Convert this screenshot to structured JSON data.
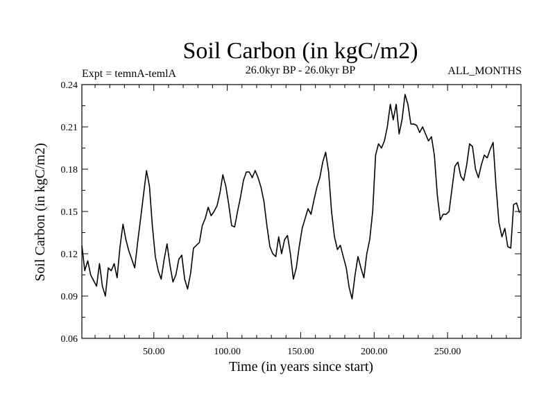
{
  "chart_data": {
    "type": "line",
    "title": "Soil Carbon (in kgC/m2)",
    "subtitle_left": "Expt = temnA-temlA",
    "subtitle_center": "26.0kyr BP - 26.0kyr BP",
    "subtitle_right": "ALL_MONTHS",
    "xlabel": "Time (in years since start)",
    "ylabel": "Soil Carbon (in kgC/m2)",
    "xlim": [
      1,
      300
    ],
    "ylim": [
      0.06,
      0.24
    ],
    "x_ticks": [
      50,
      100,
      150,
      200,
      250
    ],
    "x_tick_labels": [
      "50.00",
      "100.00",
      "150.00",
      "200.00",
      "250.00"
    ],
    "y_ticks": [
      0.06,
      0.09,
      0.12,
      0.15,
      0.18,
      0.21,
      0.24
    ],
    "y_tick_labels": [
      "0.06",
      "0.09",
      "0.12",
      "0.15",
      "0.18",
      "0.21",
      "0.24"
    ],
    "grid": false,
    "series": [
      {
        "name": "Soil Carbon",
        "color": "#000000",
        "x": [
          1,
          3,
          5,
          7,
          9,
          11,
          13,
          15,
          17,
          19,
          21,
          23,
          25,
          27,
          29,
          31,
          33,
          35,
          37,
          39,
          41,
          43,
          45,
          47,
          49,
          51,
          53,
          55,
          57,
          59,
          61,
          63,
          65,
          67,
          69,
          71,
          73,
          75,
          77,
          79,
          81,
          83,
          85,
          87,
          89,
          91,
          93,
          95,
          97,
          99,
          101,
          103,
          105,
          107,
          109,
          111,
          113,
          115,
          117,
          119,
          121,
          123,
          125,
          127,
          129,
          131,
          133,
          135,
          137,
          139,
          141,
          143,
          145,
          147,
          149,
          151,
          153,
          155,
          157,
          159,
          161,
          163,
          165,
          167,
          169,
          171,
          173,
          175,
          177,
          179,
          181,
          183,
          185,
          187,
          189,
          191,
          193,
          195,
          197,
          199,
          201,
          203,
          205,
          207,
          209,
          211,
          213,
          215,
          217,
          219,
          221,
          223,
          225,
          227,
          229,
          231,
          233,
          235,
          237,
          239,
          241,
          243,
          245,
          247,
          249,
          251,
          253,
          255,
          257,
          259,
          261,
          263,
          265,
          267,
          269,
          271,
          273,
          275,
          277,
          279,
          281,
          283,
          285,
          287,
          289,
          291,
          293,
          295,
          297,
          299
        ],
        "values": [
          0.126,
          0.108,
          0.115,
          0.105,
          0.101,
          0.097,
          0.113,
          0.097,
          0.09,
          0.11,
          0.108,
          0.113,
          0.103,
          0.125,
          0.141,
          0.13,
          0.122,
          0.116,
          0.11,
          0.128,
          0.145,
          0.162,
          0.179,
          0.168,
          0.14,
          0.118,
          0.108,
          0.102,
          0.116,
          0.127,
          0.112,
          0.1,
          0.105,
          0.116,
          0.119,
          0.102,
          0.095,
          0.106,
          0.124,
          0.126,
          0.128,
          0.14,
          0.145,
          0.153,
          0.147,
          0.15,
          0.154,
          0.163,
          0.176,
          0.168,
          0.155,
          0.14,
          0.139,
          0.15,
          0.16,
          0.172,
          0.178,
          0.178,
          0.174,
          0.179,
          0.174,
          0.167,
          0.157,
          0.14,
          0.125,
          0.12,
          0.118,
          0.132,
          0.12,
          0.13,
          0.133,
          0.12,
          0.102,
          0.11,
          0.125,
          0.138,
          0.145,
          0.152,
          0.148,
          0.158,
          0.167,
          0.174,
          0.185,
          0.192,
          0.178,
          0.15,
          0.132,
          0.123,
          0.126,
          0.118,
          0.11,
          0.096,
          0.088,
          0.105,
          0.118,
          0.11,
          0.103,
          0.12,
          0.13,
          0.15,
          0.19,
          0.198,
          0.195,
          0.2,
          0.21,
          0.226,
          0.215,
          0.226,
          0.205,
          0.215,
          0.233,
          0.226,
          0.212,
          0.212,
          0.211,
          0.206,
          0.21,
          0.205,
          0.2,
          0.203,
          0.19,
          0.162,
          0.144,
          0.148,
          0.148,
          0.15,
          0.166,
          0.182,
          0.185,
          0.175,
          0.172,
          0.183,
          0.198,
          0.196,
          0.18,
          0.174,
          0.183,
          0.19,
          0.188,
          0.194,
          0.199,
          0.168,
          0.142,
          0.132,
          0.138,
          0.125,
          0.124,
          0.155,
          0.156,
          0.149
        ]
      }
    ]
  }
}
